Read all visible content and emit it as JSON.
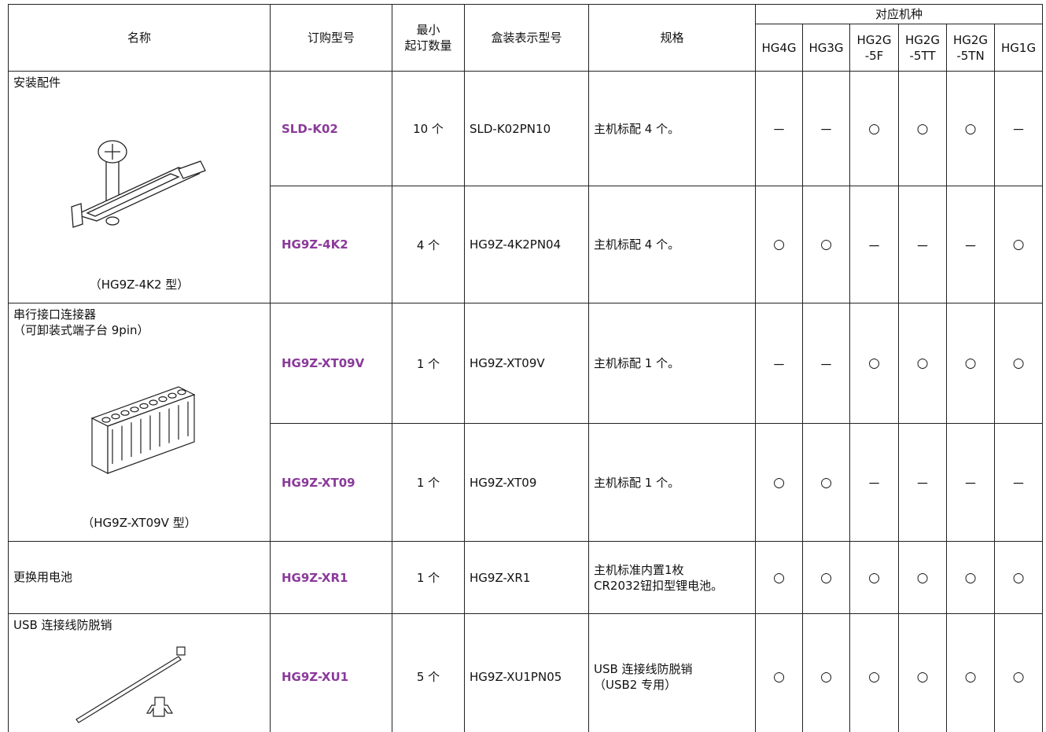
{
  "header": {
    "name": "名称",
    "order_no": "订购型号",
    "min_qty": [
      "最小",
      "起订数量"
    ],
    "box_model": "盒装表示型号",
    "spec": "规格",
    "compatible": "对应机种",
    "models": [
      [
        "HG4G"
      ],
      [
        "HG3G"
      ],
      [
        "HG2G",
        "-5F"
      ],
      [
        "HG2G",
        "-5TT"
      ],
      [
        "HG2G",
        "-5TN"
      ],
      [
        "HG1G"
      ]
    ]
  },
  "groups": [
    {
      "name": [
        "安装配件"
      ],
      "caption": "（HG9Z-4K2 型）",
      "items": [
        {
          "order_no": "SLD-K02",
          "min_qty": "10 个",
          "box_model": "SLD-K02PN10",
          "spec": [
            "主机标配 4 个。"
          ],
          "compat": [
            "－",
            "－",
            "○",
            "○",
            "○",
            "－"
          ]
        },
        {
          "order_no": "HG9Z-4K2",
          "min_qty": "4 个",
          "box_model": "HG9Z-4K2PN04",
          "spec": [
            "主机标配 4 个。"
          ],
          "compat": [
            "○",
            "○",
            "－",
            "－",
            "－",
            "○"
          ]
        }
      ]
    },
    {
      "name": [
        "串行接口连接器",
        "（可卸装式端子台 9pin）"
      ],
      "caption": "（HG9Z-XT09V 型）",
      "items": [
        {
          "order_no": "HG9Z-XT09V",
          "min_qty": "1 个",
          "box_model": "HG9Z-XT09V",
          "spec": [
            "主机标配 1 个。"
          ],
          "compat": [
            "－",
            "－",
            "○",
            "○",
            "○",
            "○"
          ]
        },
        {
          "order_no": "HG9Z-XT09",
          "min_qty": "1 个",
          "box_model": "HG9Z-XT09",
          "spec": [
            "主机标配 1 个。"
          ],
          "compat": [
            "○",
            "○",
            "－",
            "－",
            "－",
            "－"
          ]
        }
      ]
    },
    {
      "name": [
        "更换用电池"
      ],
      "items": [
        {
          "order_no": "HG9Z-XR1",
          "min_qty": "1 个",
          "box_model": "HG9Z-XR1",
          "spec": [
            "主机标准内置1枚",
            "CR2032钮扣型锂电池。"
          ],
          "compat": [
            "○",
            "○",
            "○",
            "○",
            "○",
            "○"
          ]
        }
      ]
    },
    {
      "name": [
        "USB 连接线防脱销"
      ],
      "items": [
        {
          "order_no": "HG9Z-XU1",
          "min_qty": "5 个",
          "box_model": "HG9Z-XU1PN05",
          "spec": [
            "USB 连接线防脱销",
            "（USB2 专用）"
          ],
          "compat": [
            "○",
            "○",
            "○",
            "○",
            "○",
            "○"
          ]
        }
      ]
    }
  ]
}
